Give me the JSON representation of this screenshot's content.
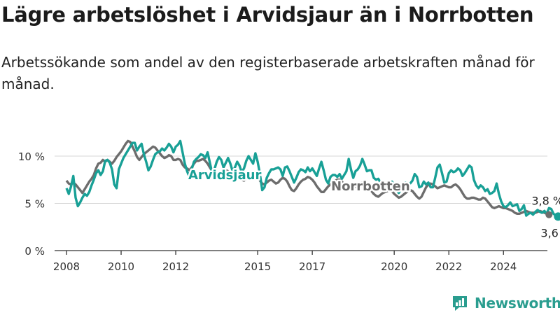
{
  "title": "Lägre arbetslöshet i Arvidsjaur än i Norrbotten",
  "subtitle": "Arbetssökande som andel av den registerbaserade arbetskraften månad för månad.",
  "brand": {
    "name": "Newsworthy",
    "icon": "newsworthy-logo-icon"
  },
  "colors": {
    "arvidsjaur": "#18a096",
    "norrbotten": "#6d6d6d",
    "grid": "#d4d4d4",
    "axis": "#333333"
  },
  "chart_data": {
    "type": "line",
    "x_axis": {
      "type": "date",
      "ticks": [
        "2008",
        "2010",
        "2012",
        "2015",
        "2017",
        "2020",
        "2022",
        "2024"
      ],
      "range": [
        "2008-01",
        "2025-04"
      ]
    },
    "y_axis": {
      "ticks": [
        "0 %",
        "5 %",
        "10 %"
      ],
      "range": [
        0,
        12
      ]
    },
    "grid": true,
    "series": [
      {
        "name": "Arvidsjaur",
        "color": "#18a096",
        "end_label": "3,6 %",
        "start": "2008-01",
        "values": [
          6.6,
          6.0,
          6.8,
          7.9,
          5.6,
          4.7,
          5.1,
          5.6,
          6.0,
          5.8,
          6.2,
          6.9,
          7.5,
          8.2,
          8.5,
          8.0,
          8.4,
          9.5,
          9.6,
          9.3,
          8.6,
          7.0,
          6.6,
          8.6,
          9.2,
          9.8,
          10.2,
          10.6,
          11.0,
          11.4,
          11.4,
          10.6,
          11.0,
          11.3,
          10.2,
          9.4,
          8.5,
          8.9,
          9.6,
          10.2,
          10.4,
          10.5,
          10.8,
          10.6,
          10.9,
          11.3,
          11.0,
          10.4,
          11.0,
          11.2,
          11.6,
          10.4,
          9.2,
          8.4,
          7.8,
          8.6,
          9.4,
          9.7,
          9.9,
          10.2,
          10.1,
          9.8,
          10.4,
          9.3,
          8.2,
          8.6,
          9.4,
          9.9,
          9.6,
          8.8,
          9.3,
          9.8,
          9.2,
          8.4,
          8.8,
          9.4,
          9.0,
          8.3,
          8.7,
          9.5,
          10.0,
          9.6,
          9.2,
          10.3,
          9.4,
          8.1,
          6.4,
          6.7,
          7.7,
          8.2,
          8.6,
          8.6,
          8.7,
          8.8,
          8.6,
          7.9,
          8.8,
          8.9,
          8.4,
          7.8,
          7.2,
          7.7,
          8.3,
          8.6,
          8.5,
          8.3,
          8.8,
          8.4,
          8.7,
          8.3,
          7.9,
          8.7,
          9.4,
          8.5,
          7.5,
          7.1,
          7.8,
          8.0,
          8.0,
          7.8,
          8.1,
          7.6,
          8.0,
          8.4,
          9.7,
          8.6,
          7.7,
          8.4,
          8.6,
          9.0,
          9.7,
          9.1,
          8.4,
          8.5,
          8.5,
          7.7,
          7.5,
          7.6,
          7.2,
          6.8,
          6.7,
          7.3,
          7.2,
          7.3,
          7.0,
          6.4,
          6.1,
          6.5,
          7.1,
          7.2,
          7.0,
          7.1,
          7.4,
          8.1,
          7.8,
          6.7,
          6.8,
          7.3,
          7.0,
          7.2,
          6.7,
          6.7,
          7.7,
          8.8,
          9.1,
          8.2,
          7.2,
          7.3,
          8.2,
          8.5,
          8.3,
          8.4,
          8.7,
          8.5,
          7.9,
          8.2,
          8.6,
          9.0,
          8.8,
          7.5,
          6.9,
          6.6,
          6.9,
          6.7,
          6.3,
          6.5,
          6.0,
          6.1,
          6.3,
          7.1,
          6.0,
          5.2,
          4.7,
          4.6,
          4.8,
          5.1,
          4.7,
          4.8,
          4.9,
          4.2,
          4.4,
          4.8,
          3.7,
          3.9,
          4.0,
          3.8,
          4.1,
          4.3,
          4.1,
          4.0,
          4.2,
          3.9,
          4.5,
          4.4,
          3.9,
          3.7,
          3.6
        ]
      },
      {
        "name": "Norrbotten",
        "color": "#6d6d6d",
        "end_label": "3,8 %",
        "start": "2008-01",
        "values": [
          7.4,
          7.1,
          7.0,
          7.2,
          7.0,
          6.7,
          6.4,
          6.1,
          6.5,
          6.9,
          7.3,
          7.6,
          8.0,
          8.7,
          9.2,
          9.3,
          9.6,
          9.4,
          9.6,
          9.4,
          9.2,
          9.5,
          9.9,
          10.2,
          10.5,
          10.9,
          11.3,
          11.6,
          11.5,
          11.0,
          10.5,
          9.9,
          9.6,
          9.9,
          10.2,
          10.4,
          10.6,
          10.8,
          11.0,
          10.9,
          10.6,
          10.3,
          10.0,
          9.8,
          9.9,
          10.1,
          10.0,
          9.6,
          9.6,
          9.7,
          9.6,
          9.1,
          8.8,
          8.7,
          8.5,
          8.8,
          9.2,
          9.5,
          9.5,
          9.6,
          9.7,
          9.5,
          9.2,
          8.8,
          8.4,
          8.1,
          7.8,
          8.0,
          8.3,
          8.6,
          8.5,
          8.4,
          8.2,
          8.0,
          7.8,
          7.8,
          7.7,
          7.5,
          7.4,
          7.6,
          7.8,
          8.0,
          7.9,
          7.8,
          7.7,
          7.4,
          7.1,
          7.0,
          7.2,
          7.4,
          7.5,
          7.3,
          7.1,
          7.2,
          7.5,
          7.7,
          7.6,
          7.3,
          6.8,
          6.4,
          6.3,
          6.6,
          7.0,
          7.3,
          7.5,
          7.6,
          7.8,
          7.7,
          7.5,
          7.2,
          6.8,
          6.5,
          6.2,
          6.2,
          6.5,
          6.8,
          7.0,
          7.2,
          7.4,
          7.5,
          7.5,
          7.3,
          7.0,
          6.7,
          6.5,
          6.4,
          6.6,
          6.8,
          7.0,
          7.1,
          7.2,
          7.1,
          6.9,
          6.6,
          6.3,
          6.0,
          5.8,
          5.7,
          5.9,
          6.1,
          6.2,
          6.3,
          6.4,
          6.3,
          6.0,
          5.8,
          5.6,
          5.7,
          5.9,
          6.1,
          6.3,
          6.4,
          6.3,
          6.0,
          5.7,
          5.5,
          5.7,
          6.2,
          6.7,
          7.0,
          7.1,
          7.0,
          6.8,
          6.6,
          6.7,
          6.8,
          6.9,
          6.8,
          6.7,
          6.7,
          6.9,
          7.0,
          6.8,
          6.5,
          6.1,
          5.7,
          5.5,
          5.5,
          5.6,
          5.6,
          5.5,
          5.4,
          5.4,
          5.6,
          5.5,
          5.2,
          4.9,
          4.6,
          4.5,
          4.6,
          4.7,
          4.6,
          4.5,
          4.5,
          4.4,
          4.3,
          4.2,
          4.0,
          3.9,
          3.9,
          4.0,
          4.1,
          4.2,
          4.1,
          4.0,
          4.0,
          4.0,
          4.1,
          4.2,
          4.1,
          4.0,
          3.9,
          3.8
        ]
      }
    ]
  }
}
